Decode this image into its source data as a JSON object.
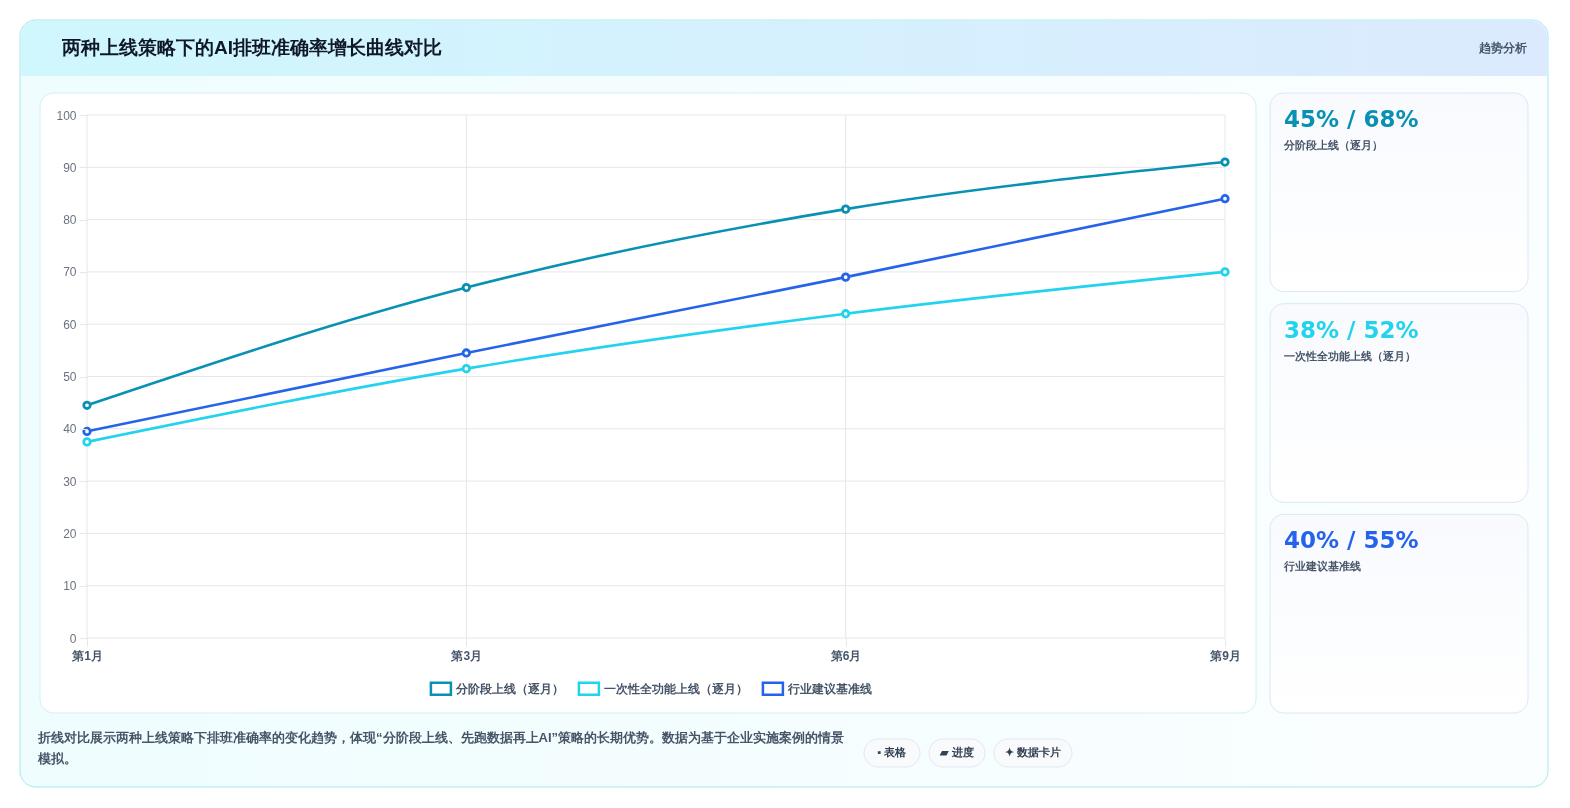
{
  "chart_data": [
    {
      "type": "line",
      "title": "两种上线策略下的AI排班准确率增长曲线对比",
      "categories": [
        "第1月",
        "第3月",
        "第6月",
        "第9月"
      ],
      "series": [
        {
          "name": "分阶段上线（逐月）",
          "color": "#0891b2",
          "values": [
            44.5,
            67,
            82,
            91
          ]
        },
        {
          "name": "一次性全功能上线（逐月）",
          "color": "#22d3ee",
          "values": [
            37.5,
            51.5,
            62,
            70
          ]
        },
        {
          "name": "行业建议基准线",
          "color": "#2563eb",
          "values": [
            39.5,
            54.5,
            69,
            84
          ]
        }
      ],
      "ylim": [
        0,
        100
      ],
      "yticks": [
        0,
        10,
        20,
        30,
        40,
        50,
        60,
        70,
        80,
        90,
        100
      ],
      "grid": true,
      "legend": "bottom",
      "marker": "circle",
      "line_style": "solid",
      "annotations": [
        "折线对比展示两种上线策略下排班准确率的变化趋势，体现“分阶段上线、先跑数据再上AI”策略的长期优势。数据为基于企业实施案例的情景模拟。",
        "▪ 表格",
        "▰ 进度",
        "✦ 数据卡片"
      ]
    },
    {
      "type": "other",
      "annotations": [
        "趋势分析"
      ],
      "categories": [
        "分阶段上线（逐月）",
        "一次性全功能上线（逐月）",
        "行业建议基准线"
      ],
      "value_labels": [
        "45% / 68%",
        "38% / 52%",
        "40% / 55%"
      ]
    }
  ]
}
